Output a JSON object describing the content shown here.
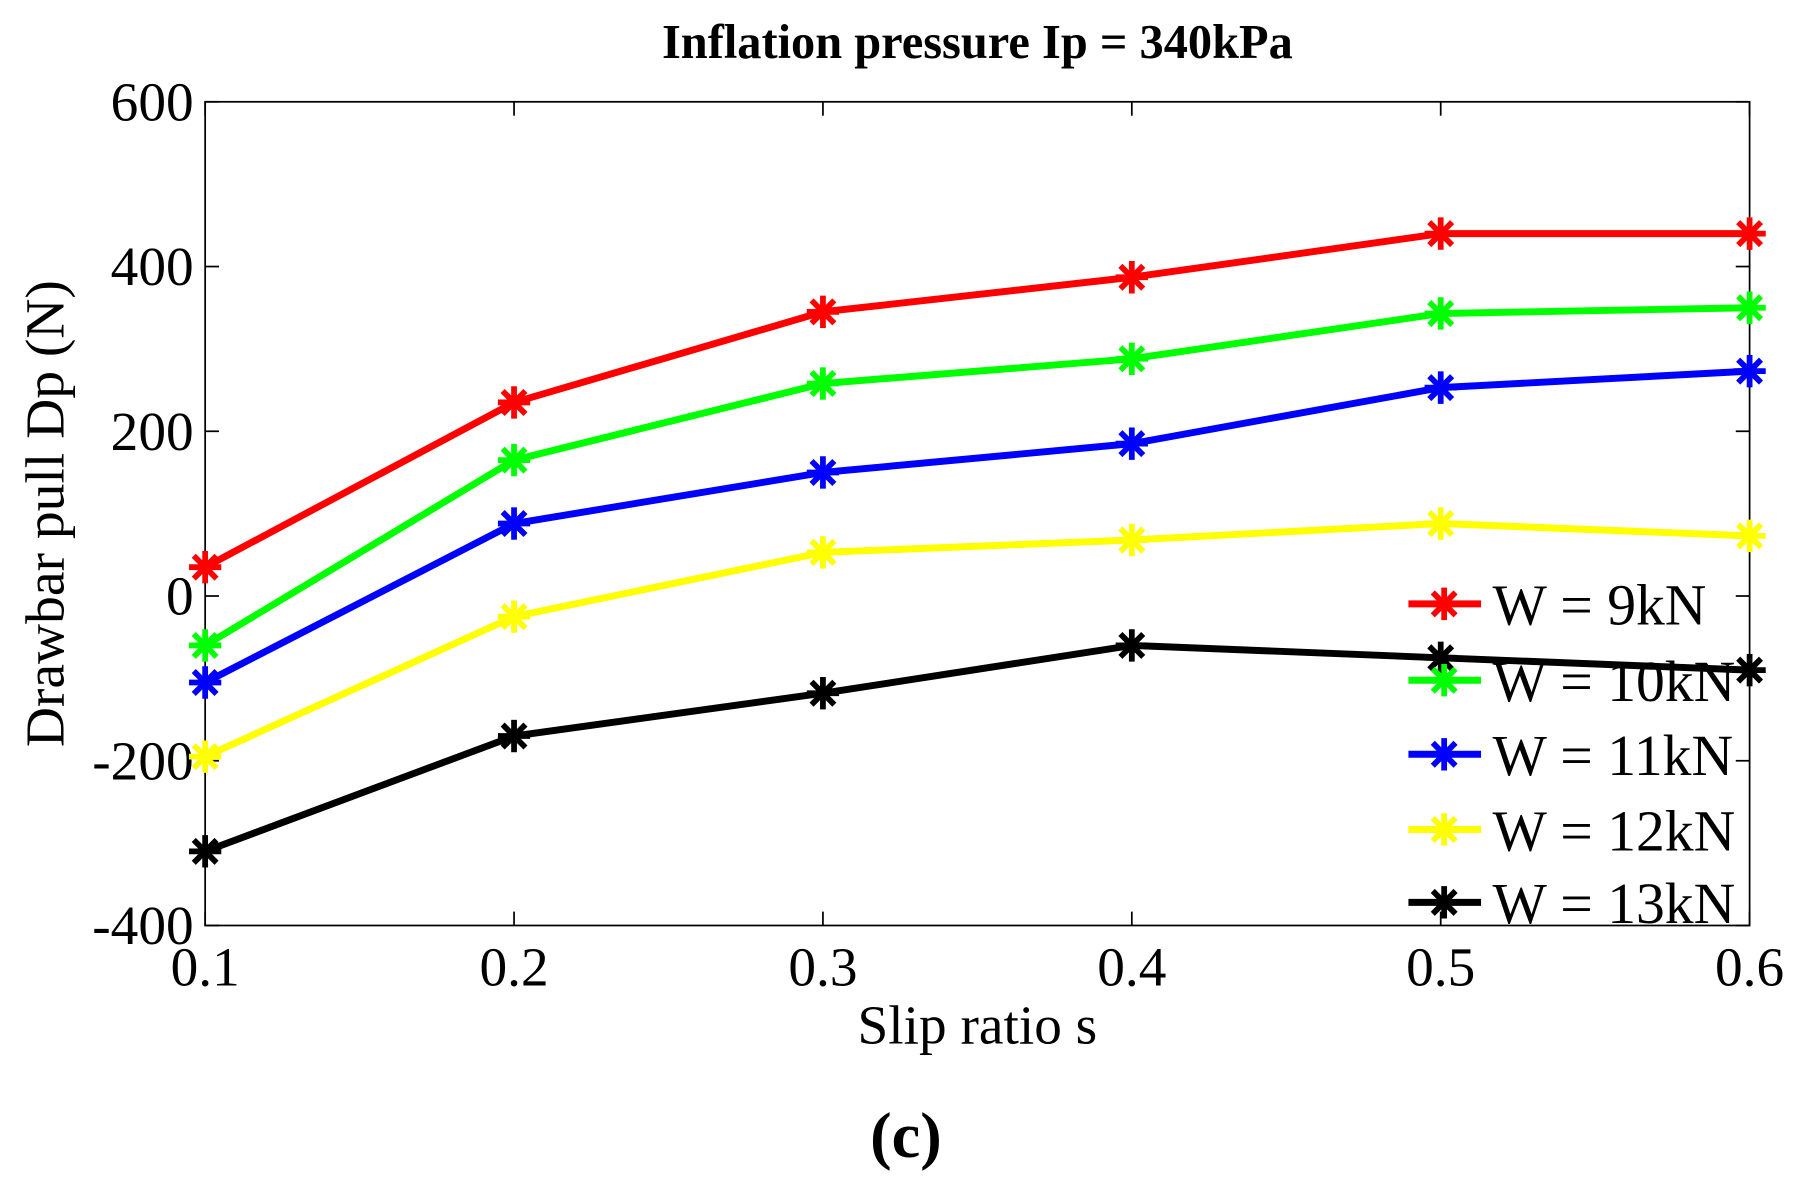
{
  "chart_data": {
    "type": "line",
    "title": "Inflation pressure Ip = 340kPa",
    "xlabel": "Slip ratio s",
    "ylabel": "Drawbar pull Dp (N)",
    "caption": "(c)",
    "x": [
      0.1,
      0.2,
      0.3,
      0.4,
      0.5,
      0.6
    ],
    "xlim": [
      0.1,
      0.6
    ],
    "ylim": [
      -400,
      600
    ],
    "xticks": [
      "0.1",
      "0.2",
      "0.3",
      "0.4",
      "0.5",
      "0.6"
    ],
    "yticks": [
      "600",
      "400",
      "200",
      "0",
      "-200",
      "-400"
    ],
    "ytick_values": [
      600,
      400,
      200,
      0,
      -200,
      -400
    ],
    "grid": false,
    "legend_position": "bottom-right",
    "marker": "asterisk",
    "series": [
      {
        "name": "W = 9kN",
        "color": "#ff0000",
        "values": [
          35,
          235,
          345,
          387,
          440,
          440
        ]
      },
      {
        "name": "W = 10kN",
        "color": "#00ff00",
        "values": [
          -60,
          165,
          258,
          288,
          343,
          350
        ]
      },
      {
        "name": "W = 11kN",
        "color": "#0000ff",
        "values": [
          -105,
          88,
          150,
          185,
          253,
          273
        ]
      },
      {
        "name": "W = 12kN",
        "color": "#ffff00",
        "values": [
          -195,
          -25,
          53,
          68,
          88,
          73
        ]
      },
      {
        "name": "W = 13kN",
        "color": "#000000",
        "values": [
          -310,
          -170,
          -118,
          -60,
          -75,
          -90
        ]
      }
    ]
  }
}
